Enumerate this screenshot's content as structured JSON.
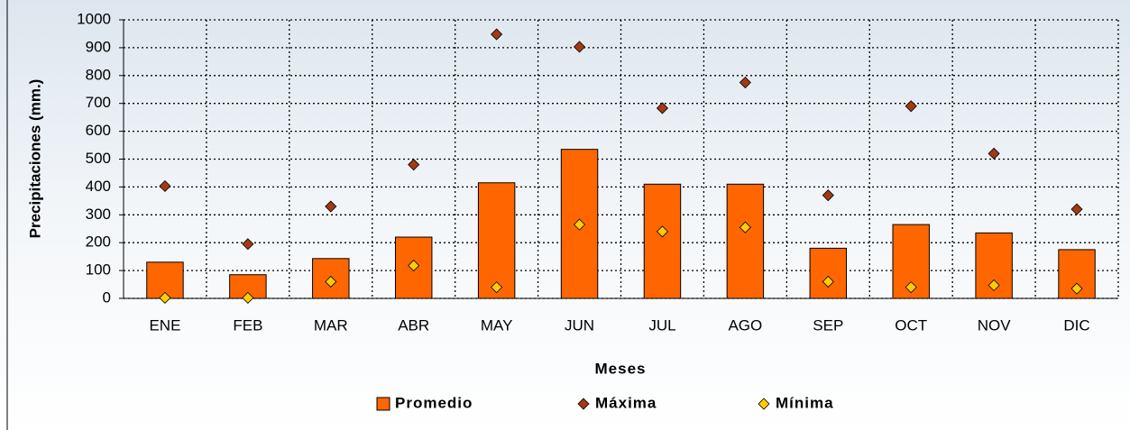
{
  "chart_data": {
    "type": "bar",
    "ylabel": "Precipitaciones (mm.)",
    "xlabel": "Meses",
    "categories": [
      "ENE",
      "FEB",
      "MAR",
      "ABR",
      "MAY",
      "JUN",
      "JUL",
      "AGO",
      "SEP",
      "OCT",
      "NOV",
      "DIC"
    ],
    "series": [
      {
        "name": "Promedio",
        "type": "bar",
        "color": "#ff6600",
        "values": [
          130,
          85,
          143,
          220,
          415,
          535,
          410,
          410,
          180,
          265,
          235,
          175
        ]
      },
      {
        "name": "Máxima",
        "type": "scatter",
        "color": "#a33a14",
        "values": [
          403,
          195,
          330,
          480,
          948,
          903,
          683,
          775,
          370,
          690,
          520,
          320
        ]
      },
      {
        "name": "Mínima",
        "type": "scatter",
        "color": "#ffcc00",
        "values": [
          2,
          2,
          60,
          118,
          40,
          265,
          240,
          255,
          60,
          40,
          47,
          35
        ]
      }
    ],
    "ylim": [
      0,
      1000
    ],
    "yticks": [
      0,
      100,
      200,
      300,
      400,
      500,
      600,
      700,
      800,
      900,
      1000
    ],
    "grid": true,
    "legend": "bottom"
  }
}
